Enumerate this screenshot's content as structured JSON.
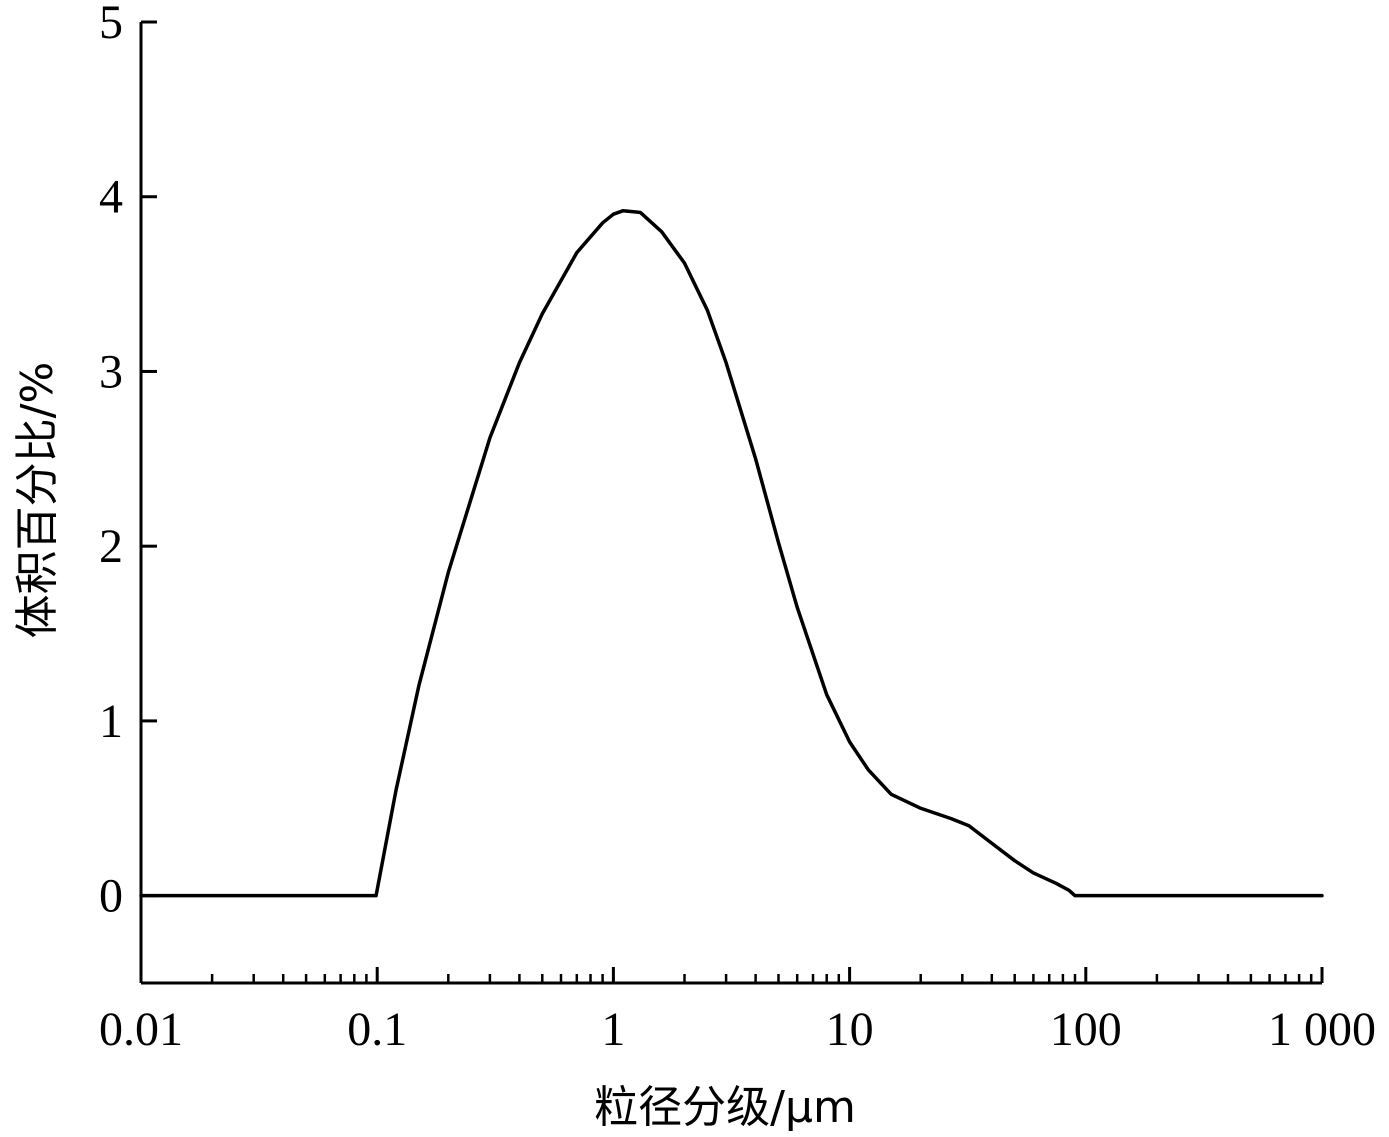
{
  "chart_data": {
    "type": "line",
    "title": "",
    "xlabel": "粒径分级/μm",
    "ylabel": "体积百分比/%",
    "x_scale": "log",
    "xlim": [
      0.01,
      1000
    ],
    "ylim": [
      -0.5,
      5
    ],
    "x_ticks": [
      0.01,
      0.1,
      1,
      10,
      100,
      1000
    ],
    "x_tick_labels": [
      "0.01",
      "0.1",
      "1",
      "10",
      "100",
      "1 000"
    ],
    "y_ticks": [
      0,
      1,
      2,
      3,
      4,
      5
    ],
    "y_tick_labels": [
      "0",
      "1",
      "2",
      "3",
      "4",
      "5"
    ],
    "grid": false,
    "legend": "none",
    "line_color": "#000000",
    "series": [
      {
        "x": [
          0.01,
          0.0989,
          0.12,
          0.15,
          0.2,
          0.3,
          0.4,
          0.5,
          0.7,
          0.9,
          1.0,
          1.1,
          1.3,
          1.6,
          2.0,
          2.5,
          3.0,
          4.0,
          5.0,
          6.0,
          8.0,
          10.0,
          12.0,
          15.0,
          20.0,
          27.0,
          32.0,
          40.0,
          50.0,
          60.0,
          75.0,
          85.0,
          90.0,
          100.0,
          1000.0
        ],
        "y": [
          0,
          0,
          0.6,
          1.2,
          1.85,
          2.62,
          3.05,
          3.33,
          3.68,
          3.85,
          3.9,
          3.92,
          3.91,
          3.8,
          3.62,
          3.35,
          3.05,
          2.5,
          2.02,
          1.65,
          1.15,
          0.88,
          0.72,
          0.58,
          0.5,
          0.44,
          0.4,
          0.3,
          0.2,
          0.13,
          0.07,
          0.03,
          0,
          0,
          0
        ]
      }
    ]
  }
}
